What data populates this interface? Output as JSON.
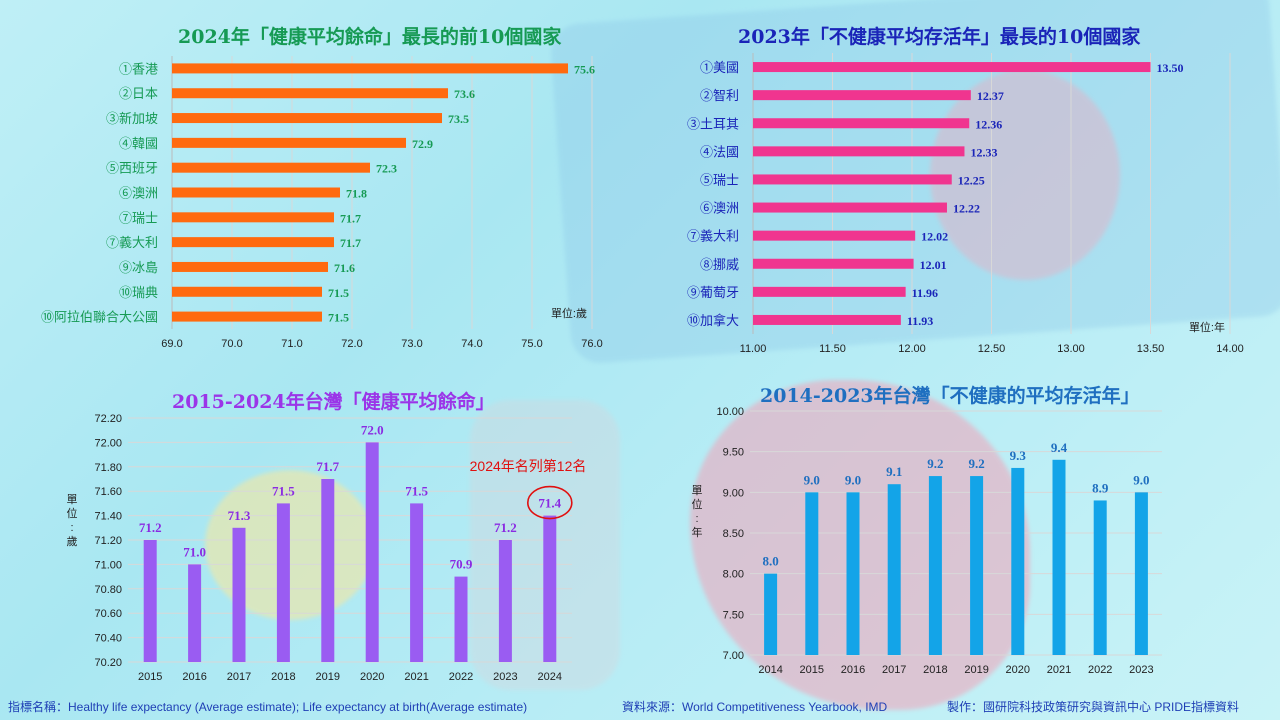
{
  "charts": [
    {
      "title": "2024年「健康平均餘命」最長的前10個國家",
      "title_color": "#169a54",
      "bar_color": "#ff6a0f",
      "label_color": "#169a54",
      "value_color": "#169a54",
      "unit": "單位:歲"
    },
    {
      "title": "2023年「不健康平均存活年」最長的10個國家",
      "title_color": "#1a24b8",
      "bar_color": "#f0358f",
      "label_color": "#1a24b8",
      "value_color": "#1a24b8",
      "unit": "單位:年"
    },
    {
      "title": "2015-2024年台灣「健康平均餘命」",
      "title_color": "#9b35e8",
      "bar_color": "#9a5cf2",
      "value_color": "#8a2be2",
      "unit_vertical": "單位:歲",
      "annotation": "2024年名列第12名",
      "annotation_color": "#e01010"
    },
    {
      "title": "2014-2023年台灣「不健康的平均存活年」",
      "title_color": "#1f6fc0",
      "bar_color": "#13a4e8",
      "value_color": "#1f6fc0",
      "unit_vertical": "單位:年"
    }
  ],
  "chart_data": [
    {
      "type": "bar",
      "orientation": "horizontal",
      "title": "2024年「健康平均餘命」最長的前10個國家",
      "categories": [
        "①香港",
        "②日本",
        "③新加坡",
        "④韓國",
        "⑤西班牙",
        "⑥澳洲",
        "⑦瑞士",
        "⑦義大利",
        "⑨冰島",
        "⑩瑞典",
        "⑩阿拉伯聯合大公國"
      ],
      "values": [
        75.6,
        73.6,
        73.5,
        72.9,
        72.3,
        71.8,
        71.7,
        71.7,
        71.6,
        71.5,
        71.5
      ],
      "value_labels": [
        "75.6",
        "73.6",
        "73.5",
        "72.9",
        "72.3",
        "71.8",
        "71.7",
        "71.7",
        "71.6",
        "71.5",
        "71.5"
      ],
      "xlim": [
        69.0,
        76.0
      ],
      "xticks": [
        "69.0",
        "70.0",
        "71.0",
        "72.0",
        "73.0",
        "74.0",
        "75.0",
        "76.0"
      ],
      "grid": true
    },
    {
      "type": "bar",
      "orientation": "horizontal",
      "title": "2023年「不健康平均存活年」最長的10個國家",
      "categories": [
        "①美國",
        "②智利",
        "③土耳其",
        "④法國",
        "⑤瑞士",
        "⑥澳洲",
        "⑦義大利",
        "⑧挪威",
        "⑨葡萄牙",
        "⑩加拿大"
      ],
      "values": [
        13.5,
        12.37,
        12.36,
        12.33,
        12.25,
        12.22,
        12.02,
        12.01,
        11.96,
        11.93
      ],
      "value_labels": [
        "13.50",
        "12.37",
        "12.36",
        "12.33",
        "12.25",
        "12.22",
        "12.02",
        "12.01",
        "11.96",
        "11.93"
      ],
      "xlim": [
        11.0,
        14.0
      ],
      "xticks": [
        "11.00",
        "11.50",
        "12.00",
        "12.50",
        "13.00",
        "13.50",
        "14.00"
      ],
      "grid": true
    },
    {
      "type": "bar",
      "title": "2015-2024年台灣「健康平均餘命」",
      "categories": [
        "2015",
        "2016",
        "2017",
        "2018",
        "2019",
        "2020",
        "2021",
        "2022",
        "2023",
        "2024"
      ],
      "values": [
        71.2,
        71.0,
        71.3,
        71.5,
        71.7,
        72.0,
        71.5,
        70.9,
        71.2,
        71.4
      ],
      "value_labels": [
        "71.2",
        "71.0",
        "71.3",
        "71.5",
        "71.7",
        "72.0",
        "71.5",
        "70.9",
        "71.2",
        "71.4"
      ],
      "ylim": [
        70.2,
        72.2
      ],
      "yticks": [
        "70.20",
        "70.40",
        "70.60",
        "70.80",
        "71.00",
        "71.20",
        "71.40",
        "71.60",
        "71.80",
        "72.00",
        "72.20"
      ],
      "grid": true,
      "highlight_index": 9
    },
    {
      "type": "bar",
      "title": "2014-2023年台灣「不健康的平均存活年」",
      "categories": [
        "2014",
        "2015",
        "2016",
        "2017",
        "2018",
        "2019",
        "2020",
        "2021",
        "2022",
        "2023"
      ],
      "values": [
        8.0,
        9.0,
        9.0,
        9.1,
        9.2,
        9.2,
        9.3,
        9.4,
        8.9,
        9.0
      ],
      "value_labels": [
        "8.0",
        "9.0",
        "9.0",
        "9.1",
        "9.2",
        "9.2",
        "9.3",
        "9.4",
        "8.9",
        "9.0"
      ],
      "ylim": [
        7.0,
        10.0
      ],
      "yticks": [
        "7.00",
        "7.50",
        "8.00",
        "8.50",
        "9.00",
        "9.50",
        "10.00"
      ],
      "grid": true
    }
  ],
  "footer": {
    "indicator": "指標名稱：Healthy life expectancy (Average estimate); Life expectancy at birth(Average estimate)",
    "source": "資料來源：World Competitiveness Yearbook, IMD",
    "maker": "製作：國研院科技政策研究與資訊中心 PRIDE指標資料"
  }
}
